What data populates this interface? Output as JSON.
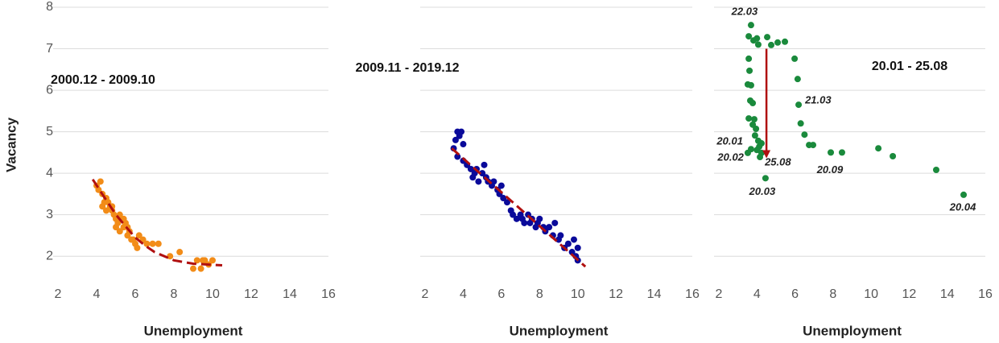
{
  "chart_data": [
    {
      "type": "scatter",
      "title": "2000.12 - 2009.10",
      "xlabel": "Unemployment",
      "ylabel": "Vacancy",
      "x": [
        4.0,
        4.2,
        4.1,
        4.3,
        4.4,
        4.5,
        4.3,
        4.6,
        4.7,
        4.5,
        4.8,
        4.9,
        5.0,
        4.8,
        5.1,
        5.2,
        5.0,
        5.3,
        5.4,
        5.2,
        5.5,
        5.6,
        5.4,
        5.7,
        5.8,
        5.6,
        5.9,
        6.0,
        6.2,
        6.1,
        6.4,
        6.6,
        6.9,
        7.2,
        7.8,
        8.3,
        9.0,
        9.2,
        9.4,
        9.6,
        9.8,
        10.0,
        9.5
      ],
      "y": [
        3.7,
        3.8,
        3.6,
        3.5,
        3.3,
        3.4,
        3.2,
        3.3,
        3.2,
        3.1,
        3.1,
        3.0,
        2.9,
        3.2,
        2.8,
        3.0,
        2.7,
        2.9,
        2.7,
        2.6,
        2.8,
        2.5,
        2.9,
        2.6,
        2.4,
        2.7,
        2.4,
        2.3,
        2.5,
        2.2,
        2.4,
        2.3,
        2.3,
        2.3,
        2.0,
        2.1,
        1.7,
        1.9,
        1.7,
        1.9,
        1.8,
        1.9,
        1.9
      ],
      "color": "#f28c18",
      "fit": {
        "x": [
          3.8,
          4.5,
          5.0,
          5.5,
          6.0,
          6.5,
          7.0,
          8.0,
          9.0,
          10.5
        ],
        "y": [
          3.85,
          3.35,
          3.0,
          2.72,
          2.45,
          2.26,
          2.1,
          1.9,
          1.82,
          1.78
        ],
        "color": "#b01010"
      },
      "xlim": [
        2,
        16
      ],
      "xticks": [
        2,
        4,
        6,
        8,
        10,
        12,
        14,
        16
      ],
      "ylim": [
        1.15,
        8
      ],
      "yticks": [
        2,
        3,
        4,
        5,
        6,
        7,
        8
      ],
      "grid": true,
      "show_ytick_labels": true
    },
    {
      "type": "scatter",
      "title": "2009.11 - 2019.12",
      "xlabel": "Unemployment",
      "x": [
        3.5,
        3.6,
        3.7,
        3.8,
        3.9,
        4.0,
        3.7,
        4.0,
        4.2,
        4.4,
        4.5,
        4.6,
        4.7,
        4.8,
        5.0,
        5.1,
        5.2,
        5.3,
        5.5,
        5.6,
        5.8,
        5.9,
        6.0,
        6.1,
        6.3,
        6.5,
        6.6,
        6.8,
        7.0,
        7.1,
        7.2,
        7.4,
        7.5,
        7.6,
        7.8,
        7.9,
        8.0,
        8.2,
        8.3,
        8.5,
        8.7,
        8.8,
        9.0,
        9.1,
        9.3,
        9.5,
        9.7,
        9.8,
        9.9,
        10.0,
        10.0
      ],
      "y": [
        4.6,
        4.8,
        5.0,
        4.9,
        5.0,
        4.7,
        4.4,
        4.3,
        4.2,
        4.1,
        3.9,
        4.0,
        4.1,
        3.8,
        4.0,
        4.2,
        3.9,
        3.8,
        3.7,
        3.8,
        3.6,
        3.5,
        3.7,
        3.4,
        3.3,
        3.1,
        3.0,
        2.9,
        3.0,
        2.9,
        2.8,
        3.0,
        2.8,
        2.9,
        2.7,
        2.8,
        2.9,
        2.7,
        2.6,
        2.7,
        2.5,
        2.8,
        2.4,
        2.5,
        2.2,
        2.3,
        2.1,
        2.4,
        2.0,
        2.2,
        1.9
      ],
      "color": "#0a0a9a",
      "fit": {
        "x": [
          3.4,
          10.4
        ],
        "y": [
          4.6,
          1.75
        ],
        "color": "#b01010"
      },
      "xlim": [
        2,
        16
      ],
      "xticks": [
        2,
        4,
        6,
        8,
        10,
        12,
        14,
        16
      ],
      "ylim": [
        1.15,
        8
      ],
      "yticks": [
        2,
        3,
        4,
        5,
        6,
        7,
        8
      ],
      "grid": true,
      "show_ytick_labels": false
    },
    {
      "type": "scatter",
      "title": "20.01 - 25.08",
      "xlabel": "Unemployment",
      "x": [
        3.69,
        3.57,
        3.82,
        4.0,
        4.54,
        4.07,
        4.75,
        5.09,
        5.47,
        5.98,
        6.14,
        6.19,
        6.3,
        6.5,
        6.74,
        6.95,
        7.88,
        8.47,
        10.38,
        11.14,
        13.42,
        14.86,
        4.45,
        3.57,
        3.61,
        3.52,
        3.69,
        3.65,
        3.78,
        3.57,
        3.86,
        3.78,
        3.95,
        3.9,
        4.07,
        4.12,
        4.0,
        4.24,
        4.16,
        3.69,
        3.52,
        4.24
      ],
      "y": [
        7.57,
        7.3,
        7.2,
        7.25,
        7.28,
        7.1,
        7.09,
        7.15,
        7.17,
        6.76,
        6.27,
        5.65,
        5.2,
        4.93,
        4.68,
        4.68,
        4.5,
        4.5,
        4.6,
        4.41,
        4.08,
        3.48,
        3.88,
        6.76,
        6.47,
        6.14,
        6.12,
        5.75,
        5.69,
        5.32,
        5.3,
        5.17,
        5.07,
        4.91,
        4.78,
        4.64,
        4.56,
        4.49,
        4.39,
        4.58,
        4.49,
        4.72
      ],
      "color": "#1a8a3c",
      "annotations": [
        {
          "text": "22.03",
          "x": 3.69,
          "y": 7.57
        },
        {
          "text": "21.03",
          "x": 6.19,
          "y": 5.65
        },
        {
          "text": "20.01",
          "x": 3.69,
          "y": 4.58
        },
        {
          "text": "20.02",
          "x": 3.52,
          "y": 4.49
        },
        {
          "text": "25.08",
          "x": 4.16,
          "y": 4.39
        },
        {
          "text": "20.09",
          "x": 8.47,
          "y": 4.5
        },
        {
          "text": "20.03",
          "x": 4.45,
          "y": 3.88
        },
        {
          "text": "20.04",
          "x": 14.86,
          "y": 3.48
        }
      ],
      "arrow": {
        "x": [
          4.5,
          4.5
        ],
        "y": [
          7.0,
          4.4
        ],
        "color": "#b01010"
      },
      "xlim": [
        2,
        16
      ],
      "xticks": [
        2,
        4,
        6,
        8,
        10,
        12,
        14,
        16
      ],
      "ylim": [
        1.15,
        8
      ],
      "yticks": [
        2,
        3,
        4,
        5,
        6,
        7,
        8
      ],
      "grid": true,
      "show_ytick_labels": false
    }
  ]
}
